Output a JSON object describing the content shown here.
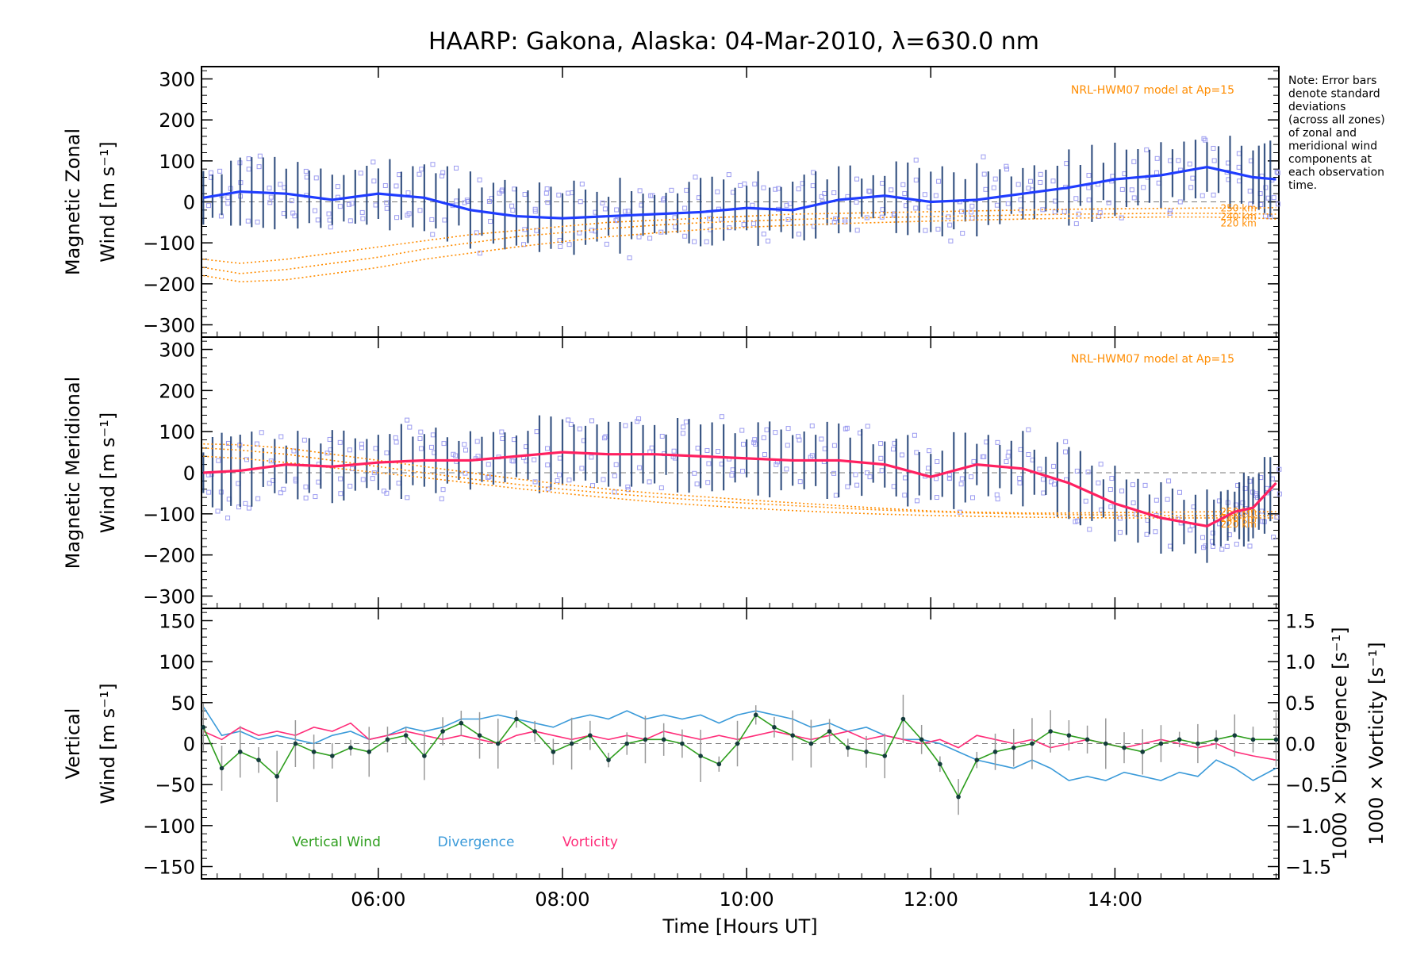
{
  "title": "HAARP: Gakona,  Alaska: 04-Mar-2010, λ=630.0 nm",
  "note": [
    "Note: Error bars",
    "denote standard",
    "deviations",
    "(across all zones)",
    "of zonal and",
    "meridional wind",
    "components at",
    "each observation",
    "time."
  ],
  "chart_data": [
    {
      "type": "line",
      "panel": "zonal",
      "ylabel": [
        "Magnetic Zonal",
        "Wind [m s⁻¹]"
      ],
      "ylim": [
        -330,
        330
      ],
      "yticks": [
        -300,
        -200,
        -100,
        0,
        100,
        200,
        300
      ],
      "xlim": [
        4.08,
        15.78
      ],
      "model_label": "NRL-HWM07 model at Ap=15",
      "model_altitudes": [
        "250 km",
        "240 km",
        "220 km"
      ],
      "colors": {
        "mean": "#1f3cff",
        "model": "#ff8c00",
        "samples": "#9c9cf0",
        "bars": "#1a3a70"
      },
      "x": [
        4.1,
        4.5,
        5.0,
        5.5,
        6.0,
        6.5,
        7.0,
        7.5,
        8.0,
        8.5,
        9.0,
        9.5,
        10.0,
        10.5,
        11.0,
        11.5,
        12.0,
        12.5,
        13.0,
        13.5,
        14.0,
        14.5,
        15.0,
        15.5,
        15.75
      ],
      "series": [
        {
          "values": [
            10,
            25,
            20,
            5,
            20,
            10,
            -20,
            -35,
            -40,
            -35,
            -30,
            -25,
            -15,
            -20,
            5,
            15,
            0,
            5,
            20,
            35,
            55,
            65,
            85,
            60,
            55
          ]
        },
        {
          "values": [
            -140,
            -150,
            -140,
            -125,
            -110,
            -95,
            -80,
            -70,
            -60,
            -50,
            -45,
            -40,
            -35,
            -30,
            -28,
            -26,
            -24,
            -22,
            -20,
            -18,
            -17,
            -16,
            -15,
            -15,
            -14
          ]
        },
        {
          "values": [
            -160,
            -175,
            -165,
            -150,
            -135,
            -115,
            -100,
            -85,
            -75,
            -65,
            -57,
            -51,
            -47,
            -43,
            -40,
            -38,
            -36,
            -34,
            -32,
            -30,
            -29,
            -28,
            -28,
            -29,
            -30
          ]
        },
        {
          "values": [
            -180,
            -195,
            -190,
            -175,
            -160,
            -140,
            -125,
            -110,
            -97,
            -85,
            -76,
            -68,
            -62,
            -57,
            -53,
            -50,
            -47,
            -44,
            -42,
            -40,
            -38,
            -37,
            -37,
            -39,
            -42
          ]
        }
      ]
    },
    {
      "type": "line",
      "panel": "meridional",
      "ylabel": [
        "Magnetic Meridional",
        "Wind [m s⁻¹]"
      ],
      "ylim": [
        -330,
        330
      ],
      "yticks": [
        -300,
        -200,
        -100,
        0,
        100,
        200,
        300
      ],
      "xlim": [
        4.08,
        15.78
      ],
      "model_label": "NRL-HWM07 model at Ap=15",
      "model_altitudes": [
        "250 km",
        "240 km",
        "220 km"
      ],
      "colors": {
        "mean": "#ff2060",
        "model": "#ff8c00",
        "samples": "#9c9cf0",
        "bars": "#1a3a70"
      },
      "x": [
        4.1,
        4.5,
        5.0,
        5.5,
        6.0,
        6.5,
        7.0,
        7.5,
        8.0,
        8.5,
        9.0,
        9.5,
        10.0,
        10.5,
        11.0,
        11.5,
        12.0,
        12.5,
        13.0,
        13.5,
        14.0,
        14.5,
        15.0,
        15.3,
        15.5,
        15.75
      ],
      "series": [
        {
          "values": [
            0,
            5,
            20,
            15,
            25,
            30,
            30,
            40,
            50,
            45,
            45,
            40,
            35,
            30,
            30,
            20,
            -10,
            20,
            10,
            -25,
            -75,
            -110,
            -130,
            -95,
            -85,
            -25
          ]
        },
        {
          "values": [
            70,
            68,
            60,
            45,
            30,
            15,
            0,
            -15,
            -28,
            -40,
            -50,
            -58,
            -66,
            -73,
            -80,
            -87,
            -93,
            -96,
            -98,
            -98,
            -97,
            -96,
            -95,
            -95,
            -95,
            -95
          ]
        },
        {
          "values": [
            60,
            55,
            45,
            30,
            15,
            0,
            -15,
            -28,
            -40,
            -50,
            -59,
            -67,
            -74,
            -80,
            -86,
            -91,
            -95,
            -98,
            -100,
            -102,
            -103,
            -104,
            -104,
            -104,
            -104,
            -104
          ]
        },
        {
          "values": [
            40,
            35,
            25,
            12,
            0,
            -12,
            -25,
            -38,
            -50,
            -61,
            -71,
            -79,
            -86,
            -92,
            -97,
            -101,
            -104,
            -106,
            -108,
            -109,
            -110,
            -110,
            -110,
            -110,
            -110,
            -110
          ]
        }
      ]
    },
    {
      "type": "line",
      "panel": "vertical",
      "ylabel": [
        "Vertical",
        "Wind [m s⁻¹]"
      ],
      "ylim": [
        -165,
        165
      ],
      "yticks": [
        -150,
        -100,
        -50,
        0,
        50,
        100,
        150
      ],
      "y2lim": [
        -1.65,
        1.65
      ],
      "y2ticks": [
        -1.5,
        -1.0,
        -0.5,
        0.0,
        0.5,
        1.0,
        1.5
      ],
      "y2labels": [
        "1000 × Divergence [s⁻¹]",
        "1000 × Vorticity [s⁻¹]"
      ],
      "xlim": [
        4.08,
        15.78
      ],
      "xticks": [
        "06:00",
        "08:00",
        "10:00",
        "12:00",
        "14:00"
      ],
      "xtick_values": [
        6,
        8,
        10,
        12,
        14
      ],
      "xlabel": "Time [Hours UT]",
      "legend": [
        "Vertical Wind",
        "Divergence",
        "Vorticity"
      ],
      "colors": {
        "vertical": "#2e9e1e",
        "divergence": "#3a9ad9",
        "vorticity": "#ff2e7a"
      },
      "x": [
        4.1,
        4.3,
        4.5,
        4.7,
        4.9,
        5.1,
        5.3,
        5.5,
        5.7,
        5.9,
        6.1,
        6.3,
        6.5,
        6.7,
        6.9,
        7.1,
        7.3,
        7.5,
        7.7,
        7.9,
        8.1,
        8.3,
        8.5,
        8.7,
        8.9,
        9.1,
        9.3,
        9.5,
        9.7,
        9.9,
        10.1,
        10.3,
        10.5,
        10.7,
        10.9,
        11.1,
        11.3,
        11.5,
        11.7,
        11.9,
        12.1,
        12.3,
        12.5,
        12.7,
        12.9,
        13.1,
        13.3,
        13.5,
        13.7,
        13.9,
        14.1,
        14.3,
        14.5,
        14.7,
        14.9,
        15.1,
        15.3,
        15.5,
        15.75
      ],
      "series": [
        {
          "name": "Vertical Wind",
          "values": [
            20,
            -30,
            -10,
            -20,
            -40,
            0,
            -10,
            -15,
            -5,
            -10,
            5,
            10,
            -15,
            15,
            25,
            10,
            0,
            30,
            15,
            -10,
            0,
            10,
            -20,
            0,
            5,
            5,
            0,
            -15,
            -25,
            0,
            35,
            20,
            10,
            0,
            15,
            -5,
            -10,
            -15,
            30,
            5,
            -25,
            -65,
            -20,
            -10,
            -5,
            0,
            15,
            10,
            5,
            0,
            -5,
            -10,
            0,
            5,
            0,
            5,
            10,
            5,
            5
          ]
        },
        {
          "name": "Divergence",
          "values": [
            0.45,
            0.1,
            0.15,
            0.05,
            0.1,
            0.05,
            0.0,
            0.1,
            0.15,
            0.05,
            0.1,
            0.2,
            0.15,
            0.2,
            0.3,
            0.3,
            0.35,
            0.3,
            0.25,
            0.2,
            0.3,
            0.35,
            0.3,
            0.4,
            0.3,
            0.35,
            0.3,
            0.35,
            0.25,
            0.35,
            0.4,
            0.35,
            0.3,
            0.2,
            0.25,
            0.15,
            0.2,
            0.1,
            0.05,
            0.05,
            0.0,
            -0.1,
            -0.2,
            -0.25,
            -0.3,
            -0.2,
            -0.3,
            -0.45,
            -0.4,
            -0.45,
            -0.35,
            -0.4,
            -0.45,
            -0.35,
            -0.4,
            -0.2,
            -0.3,
            -0.45,
            -0.3
          ]
        },
        {
          "name": "Vorticity",
          "values": [
            0.15,
            0.05,
            0.2,
            0.1,
            0.15,
            0.1,
            0.2,
            0.15,
            0.25,
            0.05,
            0.1,
            0.15,
            0.1,
            0.05,
            0.1,
            0.05,
            0.0,
            0.1,
            0.15,
            0.1,
            0.05,
            0.1,
            0.05,
            0.1,
            0.05,
            0.15,
            0.1,
            0.05,
            0.1,
            0.05,
            0.1,
            0.15,
            0.1,
            0.05,
            0.1,
            0.15,
            0.05,
            0.1,
            0.05,
            0.0,
            0.05,
            -0.05,
            0.1,
            0.05,
            0.0,
            0.05,
            -0.05,
            0.0,
            0.05,
            0.0,
            -0.05,
            0.0,
            0.05,
            0.0,
            -0.05,
            0.0,
            -0.1,
            -0.15,
            -0.2
          ]
        }
      ]
    }
  ]
}
